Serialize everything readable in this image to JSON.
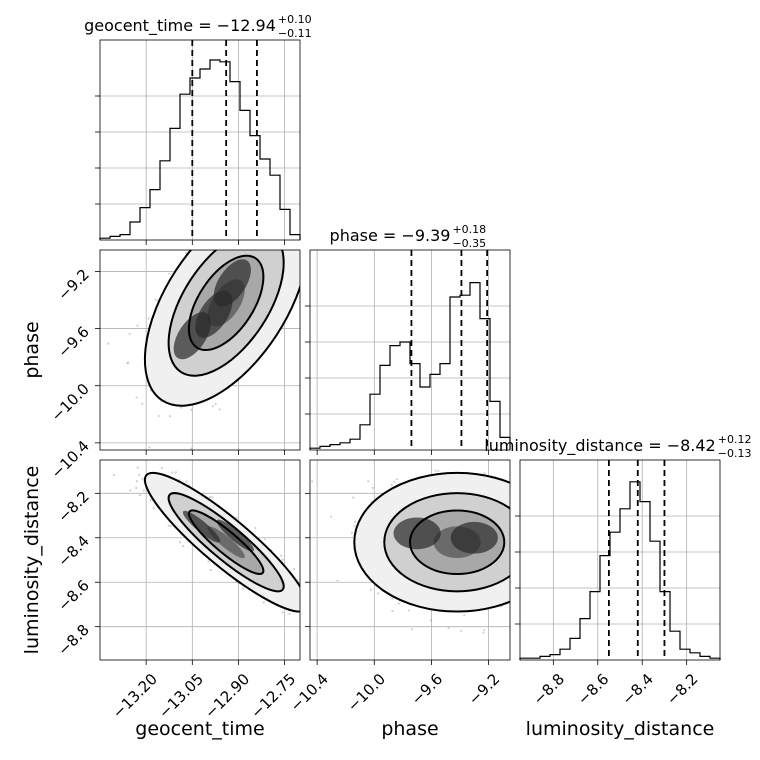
{
  "chart_data": {
    "type": "corner",
    "parameters": [
      {
        "name": "geocent_time",
        "title_label": "geocent_time = −12.94",
        "title_sup": "+0.10",
        "title_sub": "−0.11",
        "range": [
          -13.35,
          -12.7
        ],
        "median": -12.94,
        "q_low": -13.05,
        "q_high": -12.84,
        "ticks": [
          -13.2,
          -13.05,
          -12.9,
          -12.75
        ],
        "tick_labels": [
          "−13.20",
          "−13.05",
          "−12.90",
          "−12.75"
        ],
        "hist": [
          0.01,
          0.02,
          0.03,
          0.1,
          0.18,
          0.28,
          0.44,
          0.62,
          0.81,
          0.9,
          0.95,
          1.0,
          0.99,
          0.88,
          0.72,
          0.58,
          0.45,
          0.36,
          0.17,
          0.03
        ]
      },
      {
        "name": "phase",
        "title_label": "phase = −9.39",
        "title_sup": "+0.18",
        "title_sub": "−0.35",
        "range": [
          -10.45,
          -9.05
        ],
        "median": -9.39,
        "q_low": -9.74,
        "q_high": -9.21,
        "ticks": [
          -10.4,
          -10.0,
          -9.6,
          -9.2
        ],
        "tick_labels": [
          "−10.4",
          "−10.0",
          "−9.6",
          "−9.2"
        ],
        "hist": [
          0.01,
          0.02,
          0.03,
          0.04,
          0.06,
          0.14,
          0.31,
          0.47,
          0.58,
          0.6,
          0.48,
          0.35,
          0.42,
          0.48,
          0.85,
          0.86,
          0.93,
          0.73,
          0.27,
          0.07
        ]
      },
      {
        "name": "luminosity_distance",
        "title_label": "luminosity_distance = −8.42",
        "title_sup": "+0.12",
        "title_sub": "−0.13",
        "range": [
          -8.95,
          -8.05
        ],
        "median": -8.42,
        "q_low": -8.55,
        "q_high": -8.3,
        "ticks": [
          -8.8,
          -8.6,
          -8.4,
          -8.2
        ],
        "tick_labels": [
          "−8.8",
          "−8.6",
          "−8.4",
          "−8.2"
        ],
        "hist": [
          0.01,
          0.01,
          0.02,
          0.03,
          0.06,
          0.12,
          0.23,
          0.38,
          0.58,
          0.71,
          0.84,
          0.99,
          0.88,
          0.66,
          0.38,
          0.16,
          0.06,
          0.04,
          0.02,
          0.01
        ]
      }
    ],
    "pairs": [
      {
        "x": "geocent_time",
        "y": "phase",
        "mean": [
          -12.94,
          -9.42
        ],
        "sd": [
          0.11,
          0.3
        ],
        "corr": 0.55,
        "modes": [
          [
            -12.92,
            -9.28
          ],
          [
            -13.05,
            -9.65
          ],
          [
            -12.98,
            -9.5
          ]
        ]
      },
      {
        "x": "geocent_time",
        "y": "luminosity_distance",
        "mean": [
          -12.94,
          -8.42
        ],
        "sd": [
          0.11,
          0.13
        ],
        "corr": -0.9,
        "modes": [
          [
            -12.91,
            -8.39
          ],
          [
            -13.02,
            -8.35
          ]
        ]
      },
      {
        "x": "phase",
        "y": "luminosity_distance",
        "mean": [
          -9.42,
          -8.42
        ],
        "sd": [
          0.3,
          0.13
        ],
        "corr": 0.0,
        "modes": [
          [
            -9.3,
            -8.4
          ],
          [
            -9.7,
            -8.38
          ]
        ]
      }
    ],
    "grid": true
  }
}
